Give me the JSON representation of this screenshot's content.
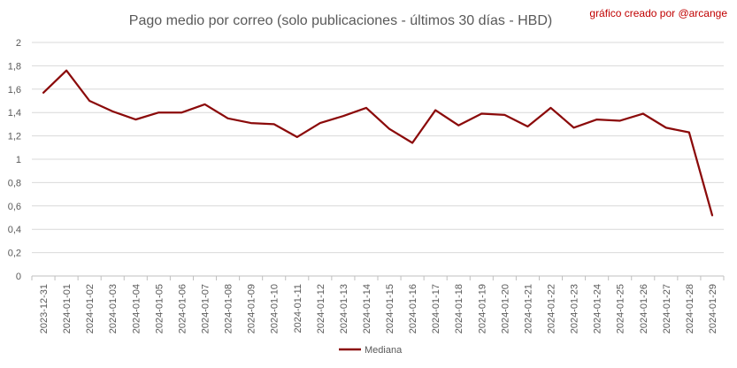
{
  "chart_data": {
    "type": "line",
    "title": "Pago medio por correo (solo publicaciones - últimos 30 días - HBD)",
    "credit": "gráfico creado por @arcange",
    "xlabel": "",
    "ylabel": "",
    "ylim": [
      0,
      2
    ],
    "y_ticks": [
      "0",
      "0,2",
      "0,4",
      "0,6",
      "0,8",
      "1",
      "1,2",
      "1,4",
      "1,6",
      "1,8",
      "2"
    ],
    "grid": true,
    "legend_position": "bottom",
    "categories": [
      "2023-12-31",
      "2024-01-01",
      "2024-01-02",
      "2024-01-03",
      "2024-01-04",
      "2024-01-05",
      "2024-01-06",
      "2024-01-07",
      "2024-01-08",
      "2024-01-09",
      "2024-01-10",
      "2024-01-11",
      "2024-01-12",
      "2024-01-13",
      "2024-01-14",
      "2024-01-15",
      "2024-01-16",
      "2024-01-17",
      "2024-01-18",
      "2024-01-19",
      "2024-01-20",
      "2024-01-21",
      "2024-01-22",
      "2024-01-23",
      "2024-01-24",
      "2024-01-25",
      "2024-01-26",
      "2024-01-27",
      "2024-01-28",
      "2024-01-29"
    ],
    "series": [
      {
        "name": "Mediana",
        "color": "#8B0A0A",
        "values": [
          1.57,
          1.76,
          1.5,
          1.41,
          1.34,
          1.4,
          1.4,
          1.47,
          1.35,
          1.31,
          1.3,
          1.19,
          1.31,
          1.37,
          1.44,
          1.26,
          1.14,
          1.42,
          1.29,
          1.39,
          1.38,
          1.28,
          1.44,
          1.27,
          1.34,
          1.33,
          1.39,
          1.27,
          1.23,
          0.52
        ]
      }
    ]
  },
  "colors": {
    "title": "#595959",
    "credit": "#C00000",
    "grid": "#D9D9D9",
    "tick": "#595959"
  }
}
